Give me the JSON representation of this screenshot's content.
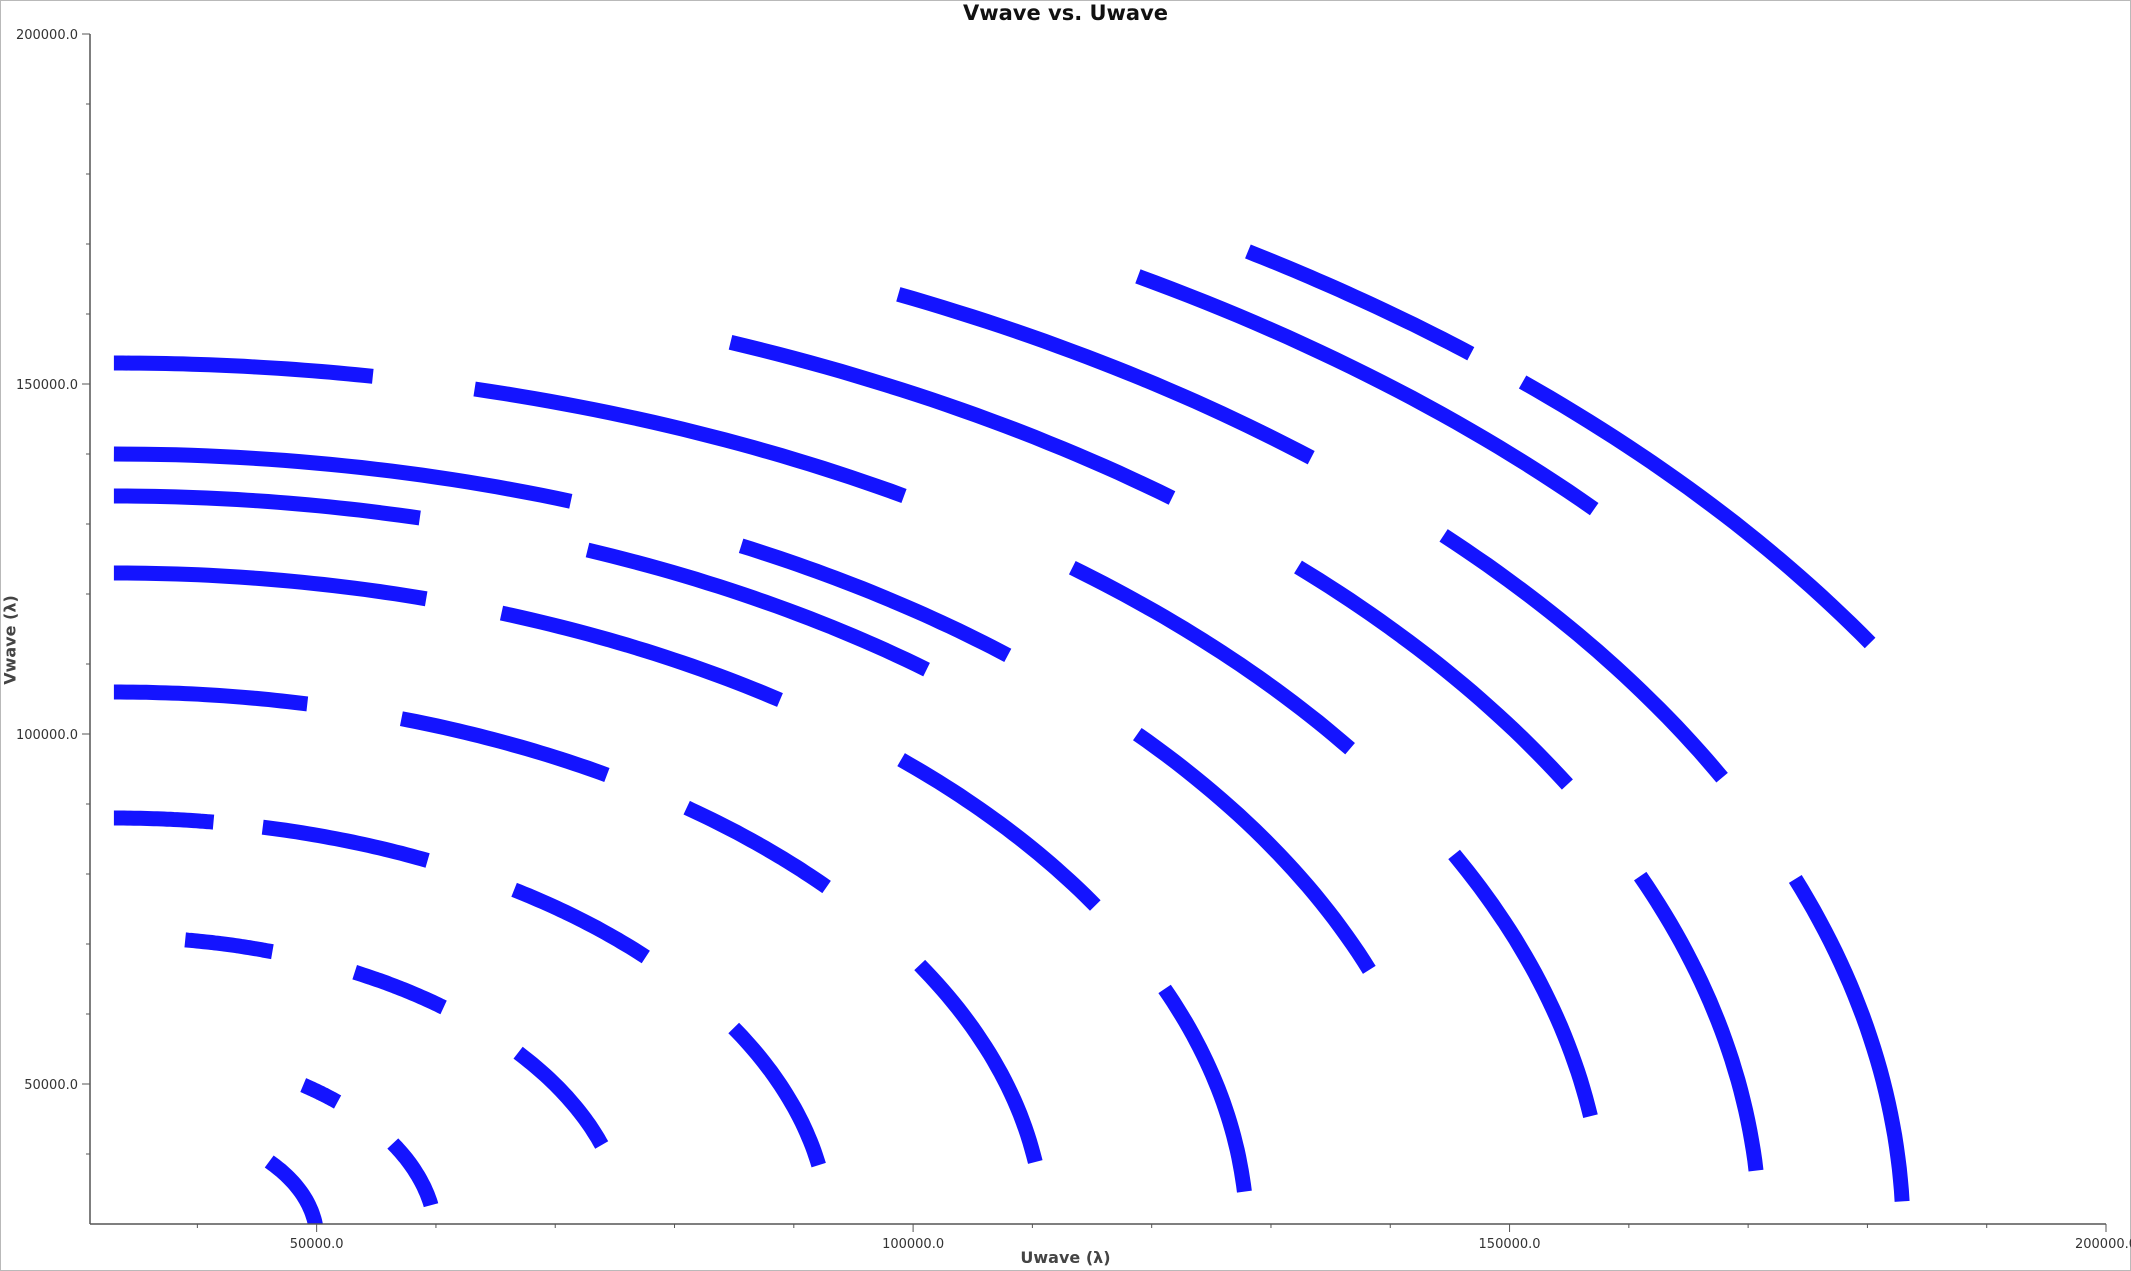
{
  "title": "Vwave vs. Uwave",
  "chart_data": {
    "type": "scatter",
    "title": "Vwave vs. Uwave",
    "xlabel": "Uwave (λ)",
    "ylabel": "Vwave (λ)",
    "xlim": [
      31000,
      200000
    ],
    "ylim": [
      30000,
      200000
    ],
    "x_ticks": [
      "50000.0",
      "100000.0",
      "150000.0",
      "200000.0"
    ],
    "y_ticks": [
      "50000.0",
      "100000.0",
      "150000.0",
      "200000.0"
    ],
    "grid": false,
    "legend": "none",
    "marker_color": "#0000ff",
    "series": [
      {
        "values": [
          {
            "cx": 33000,
            "cy": 28000,
            "r": 17000,
            "arcs": [
              [
                0,
                40
              ]
            ]
          },
          {
            "cx": 33000,
            "cy": 28000,
            "r": 27000,
            "arcs": [
              [
                10,
                30
              ],
              [
                46,
                54
              ]
            ]
          },
          {
            "cx": 33000,
            "cy": 28000,
            "r": 43000,
            "arcs": [
              [
                18,
                38
              ],
              [
                50,
                62
              ],
              [
                72,
                82
              ]
            ]
          },
          {
            "cx": 33000,
            "cy": 28000,
            "r": 60000,
            "arcs": [
              [
                10,
                30
              ],
              [
                42,
                56
              ],
              [
                64,
                78
              ],
              [
                82,
                90
              ]
            ]
          },
          {
            "cx": 33000,
            "cy": 28000,
            "r": 78000,
            "arcs": [
              [
                8,
                30
              ],
              [
                40,
                52
              ],
              [
                58,
                72
              ],
              [
                78,
                90
              ]
            ]
          },
          {
            "cx": 33000,
            "cy": 28000,
            "r": 95000,
            "arcs": [
              [
                4,
                22
              ],
              [
                30,
                46
              ],
              [
                54,
                70
              ],
              [
                74,
                90
              ]
            ]
          },
          {
            "cx": 33000,
            "cy": 28000,
            "r": 106000,
            "arcs": [
              [
                50,
                68
              ],
              [
                76,
                90
              ]
            ]
          },
          {
            "cx": 33000,
            "cy": 28000,
            "r": 112000,
            "arcs": [
              [
                20,
                40
              ],
              [
                48,
                62
              ],
              [
                70,
                90
              ]
            ]
          },
          {
            "cx": 33000,
            "cy": 28000,
            "r": 125000,
            "arcs": [
              [
                8,
                26
              ],
              [
                34,
                50
              ],
              [
                58,
                76
              ],
              [
                80,
                90
              ]
            ]
          },
          {
            "cx": 33000,
            "cy": 28000,
            "r": 138000,
            "arcs": [
              [
                4,
                22
              ],
              [
                28,
                44
              ],
              [
                50,
                68
              ]
            ]
          },
          {
            "cx": 33000,
            "cy": 28000,
            "r": 150000,
            "arcs": [
              [
                2,
                20
              ],
              [
                26,
                42
              ],
              [
                48,
                64
              ]
            ]
          },
          {
            "cx": 33000,
            "cy": 28000,
            "r": 162000,
            "arcs": [
              [
                40,
                58
              ]
            ]
          },
          {
            "cx": 33000,
            "cy": 28000,
            "r": 170000,
            "arcs": [
              [
                30,
                46
              ],
              [
                48,
                56
              ]
            ]
          }
        ]
      }
    ]
  }
}
